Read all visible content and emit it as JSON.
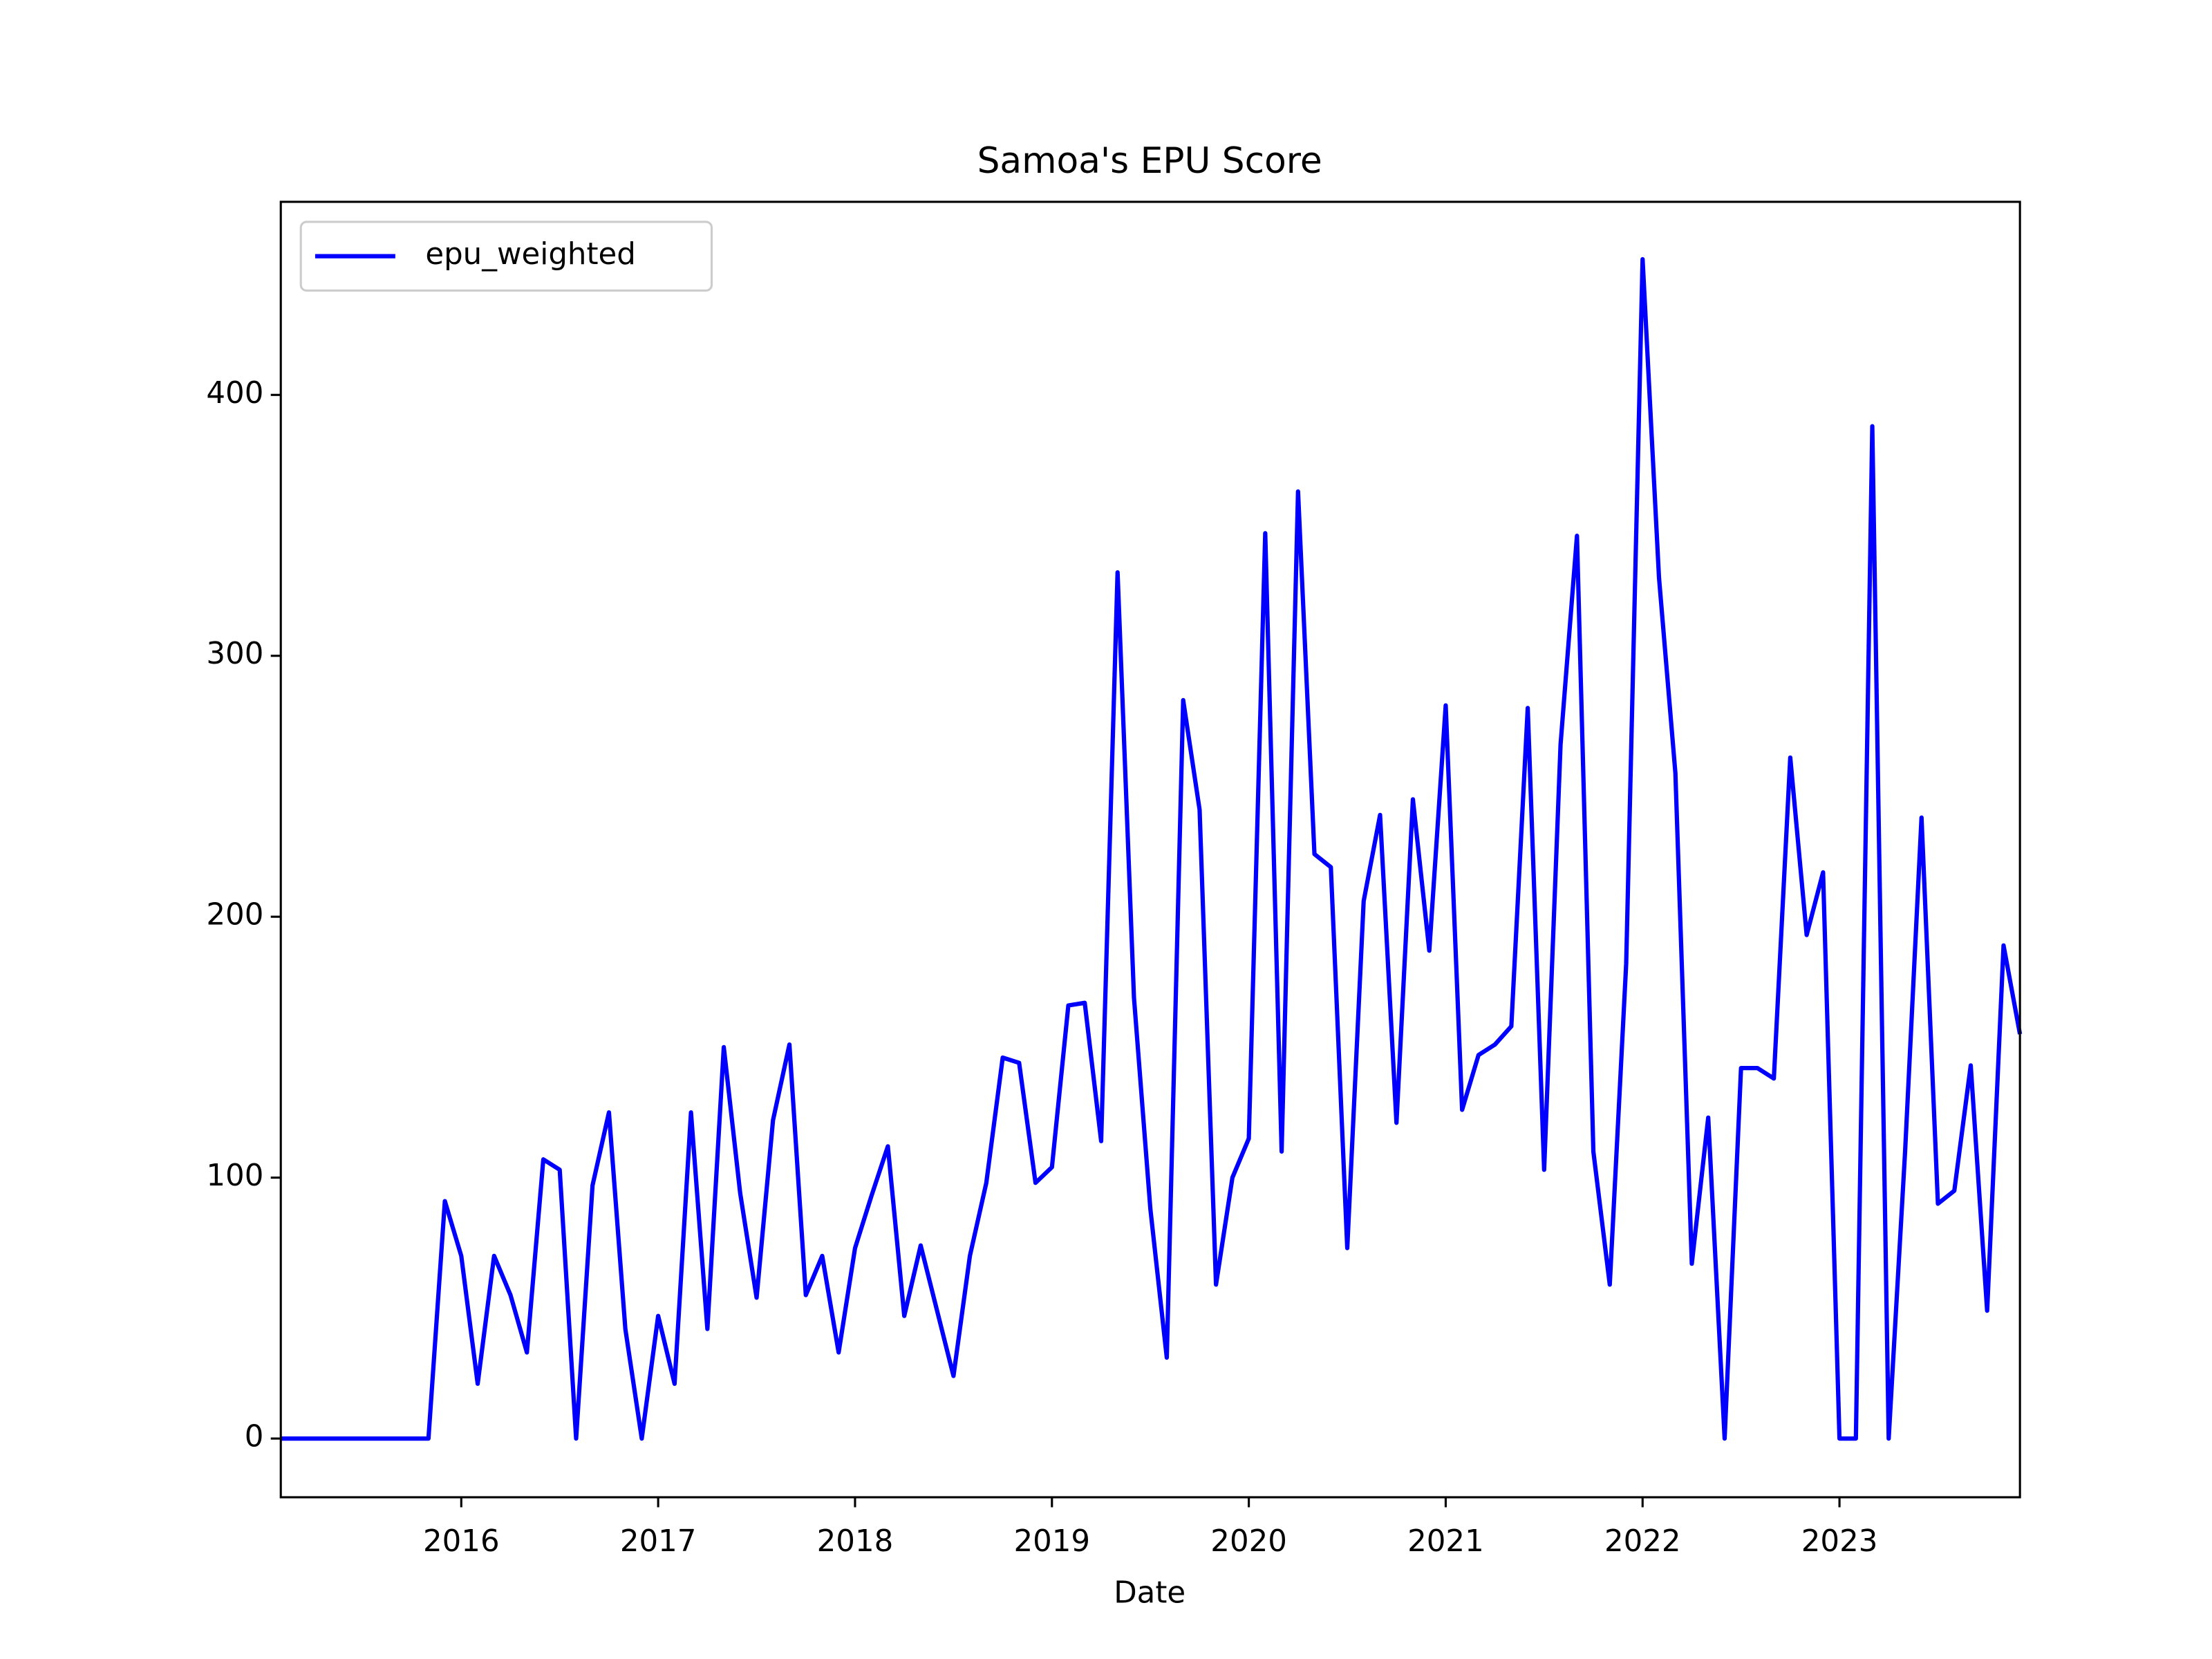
{
  "chart_data": {
    "type": "line",
    "title": "Samoa's EPU Score",
    "xlabel": "Date",
    "x": [
      "2015-02",
      "2015-03",
      "2015-04",
      "2015-05",
      "2015-06",
      "2015-07",
      "2015-08",
      "2015-09",
      "2015-10",
      "2015-11",
      "2015-12",
      "2016-01",
      "2016-02",
      "2016-03",
      "2016-04",
      "2016-05",
      "2016-06",
      "2016-07",
      "2016-08",
      "2016-09",
      "2016-10",
      "2016-11",
      "2016-12",
      "2017-01",
      "2017-02",
      "2017-03",
      "2017-04",
      "2017-05",
      "2017-06",
      "2017-07",
      "2017-08",
      "2017-09",
      "2017-10",
      "2017-11",
      "2017-12",
      "2018-01",
      "2018-02",
      "2018-03",
      "2018-04",
      "2018-05",
      "2018-06",
      "2018-07",
      "2018-08",
      "2018-09",
      "2018-10",
      "2018-11",
      "2018-12",
      "2019-01",
      "2019-02",
      "2019-03",
      "2019-04",
      "2019-05",
      "2019-06",
      "2019-07",
      "2019-08",
      "2019-09",
      "2019-10",
      "2019-11",
      "2019-12",
      "2020-01",
      "2020-02",
      "2020-03",
      "2020-04",
      "2020-05",
      "2020-06",
      "2020-07",
      "2020-08",
      "2020-09",
      "2020-10",
      "2020-11",
      "2020-12",
      "2021-01",
      "2021-02",
      "2021-03",
      "2021-04",
      "2021-05",
      "2021-06",
      "2021-07",
      "2021-08",
      "2021-09",
      "2021-10",
      "2021-11",
      "2021-12",
      "2022-01",
      "2022-02",
      "2022-03",
      "2022-04",
      "2022-05",
      "2022-06",
      "2022-07",
      "2022-08",
      "2022-09",
      "2022-10",
      "2022-11",
      "2022-12",
      "2023-01",
      "2023-02",
      "2023-03",
      "2023-04",
      "2023-05",
      "2023-06",
      "2023-07",
      "2023-08",
      "2023-09",
      "2023-10",
      "2023-11",
      "2023-12"
    ],
    "series": [
      {
        "name": "epu_weighted",
        "color": "#0000ff",
        "values": [
          0,
          0,
          0,
          0,
          0,
          0,
          0,
          0,
          0,
          0,
          91,
          70,
          21,
          70,
          55,
          33,
          107,
          103,
          0,
          97,
          125,
          42,
          0,
          47,
          21,
          125,
          42,
          150,
          94,
          54,
          122,
          151,
          55,
          70,
          33,
          73,
          93,
          112,
          47,
          74,
          49,
          24,
          70,
          98,
          146,
          144,
          98,
          104,
          166,
          167,
          114,
          332,
          169,
          88,
          31,
          283,
          241,
          59,
          100,
          115,
          347,
          110,
          363,
          224,
          219,
          73,
          206,
          239,
          121,
          245,
          187,
          281,
          126,
          147,
          151,
          158,
          280,
          103,
          266,
          346,
          110,
          59,
          182,
          452,
          330,
          255,
          67,
          123,
          0,
          142,
          142,
          138,
          261,
          193,
          217,
          0,
          0,
          388,
          0,
          110,
          238,
          90,
          95,
          143,
          49,
          189,
          155
        ]
      }
    ],
    "xlim": [
      "2015-02",
      "2023-12"
    ],
    "xticks": [
      {
        "value": "2016-01",
        "label": "2016"
      },
      {
        "value": "2017-01",
        "label": "2017"
      },
      {
        "value": "2018-01",
        "label": "2018"
      },
      {
        "value": "2019-01",
        "label": "2019"
      },
      {
        "value": "2020-01",
        "label": "2020"
      },
      {
        "value": "2021-01",
        "label": "2021"
      },
      {
        "value": "2022-01",
        "label": "2022"
      },
      {
        "value": "2023-01",
        "label": "2023"
      }
    ],
    "ylim": [
      -22.5,
      474
    ],
    "yticks": [
      0,
      100,
      200,
      300,
      400
    ],
    "legend": "upper left",
    "grid": false
  }
}
